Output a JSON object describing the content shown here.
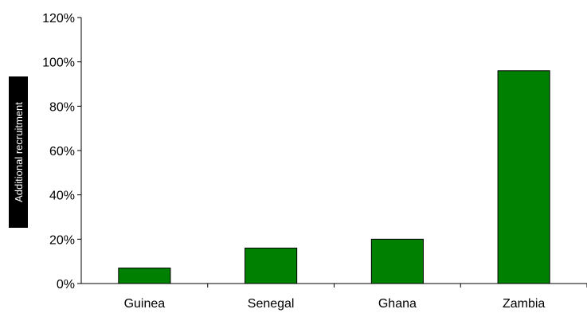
{
  "chart_data": {
    "type": "bar",
    "title": "",
    "xlabel": "",
    "ylabel": "Additional recruitment",
    "categories": [
      "Guinea",
      "Senegal",
      "Ghana",
      "Zambia"
    ],
    "series": [
      {
        "values": [
          7,
          16,
          20,
          96
        ]
      }
    ],
    "ylim": [
      0,
      120
    ],
    "yticks": [
      0,
      20,
      40,
      60,
      80,
      100,
      120
    ],
    "ytick_labels": [
      "0%",
      "20%",
      "40%",
      "60%",
      "80%",
      "100%",
      "120%"
    ],
    "grid": false,
    "legend": "none",
    "colors": {
      "bar": "#008000",
      "bar_edge": "#000000",
      "axis": "#000000"
    }
  }
}
